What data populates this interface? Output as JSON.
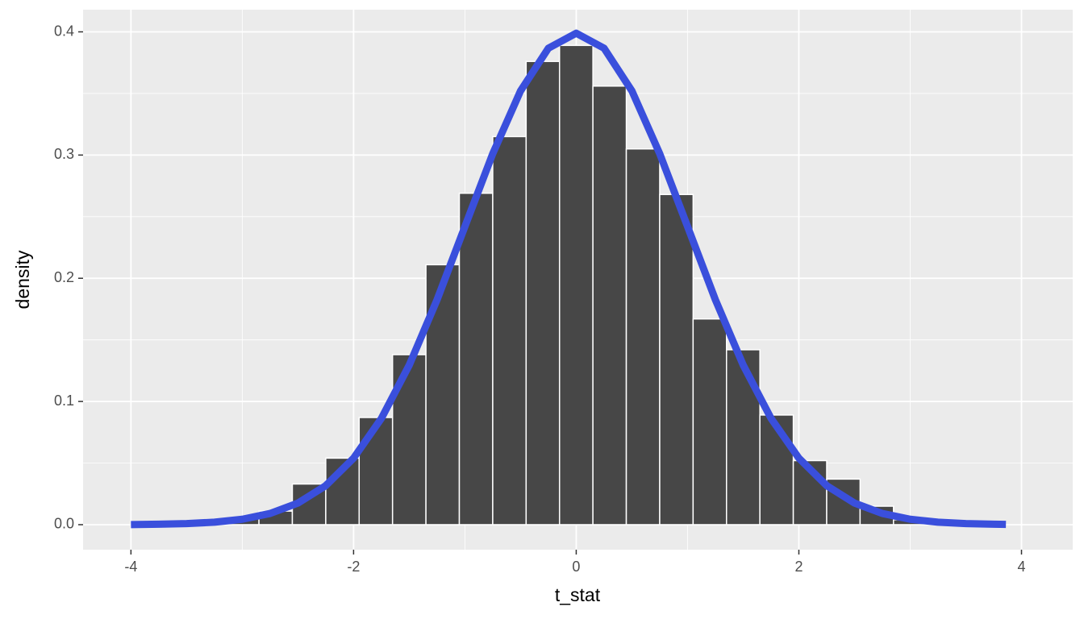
{
  "chart_data": {
    "type": "histogram",
    "x_label": "t_stat",
    "y_label": "density",
    "bins": [
      -3.15,
      -2.85,
      -2.55,
      -2.25,
      -1.95,
      -1.65,
      -1.35,
      -1.05,
      -0.75,
      -0.45,
      -0.15,
      0.15,
      0.45,
      0.75,
      1.05,
      1.35,
      1.65,
      1.95,
      2.25,
      2.55,
      2.85,
      3.15
    ],
    "values": [
      0.005,
      0.011,
      0.033,
      0.054,
      0.087,
      0.138,
      0.211,
      0.269,
      0.315,
      0.376,
      0.389,
      0.356,
      0.305,
      0.268,
      0.167,
      0.142,
      0.089,
      0.052,
      0.037,
      0.015,
      0.004
    ],
    "color": "#474747",
    "edge_color": "#ffffff",
    "overlay": {
      "type": "line",
      "color": "#3a4fdc",
      "x": [
        -4,
        -3.75,
        -3.5,
        -3.25,
        -3,
        -2.75,
        -2.5,
        -2.25,
        -2,
        -1.75,
        -1.5,
        -1.25,
        -1,
        -0.75,
        -0.5,
        -0.25,
        0,
        0.25,
        0.5,
        0.75,
        1,
        1.25,
        1.5,
        1.75,
        2,
        2.25,
        2.5,
        2.75,
        3,
        3.25,
        3.5,
        3.75,
        3.86
      ],
      "values": [
        0.0001,
        0.0004,
        0.0009,
        0.002,
        0.0044,
        0.0091,
        0.0175,
        0.0317,
        0.054,
        0.0863,
        0.1295,
        0.1826,
        0.242,
        0.3011,
        0.3521,
        0.3867,
        0.3989,
        0.3867,
        0.3521,
        0.3011,
        0.242,
        0.1826,
        0.1295,
        0.0863,
        0.054,
        0.0317,
        0.0175,
        0.0091,
        0.0044,
        0.002,
        0.0009,
        0.0004,
        0.0002
      ]
    },
    "xlim": [
      -4.43,
      4.46
    ],
    "ylim": [
      -0.0203,
      0.418
    ],
    "xticks": [
      -4,
      -2,
      0,
      2,
      4
    ],
    "yticks": [
      {
        "value": 0,
        "label": "0.0"
      },
      0.1,
      0.2,
      0.3,
      0.4
    ],
    "minor_xticks": [
      -3,
      -1,
      1,
      3
    ],
    "minor_yticks": [
      0.05,
      0.15,
      0.25,
      0.35
    ],
    "grid": true
  }
}
